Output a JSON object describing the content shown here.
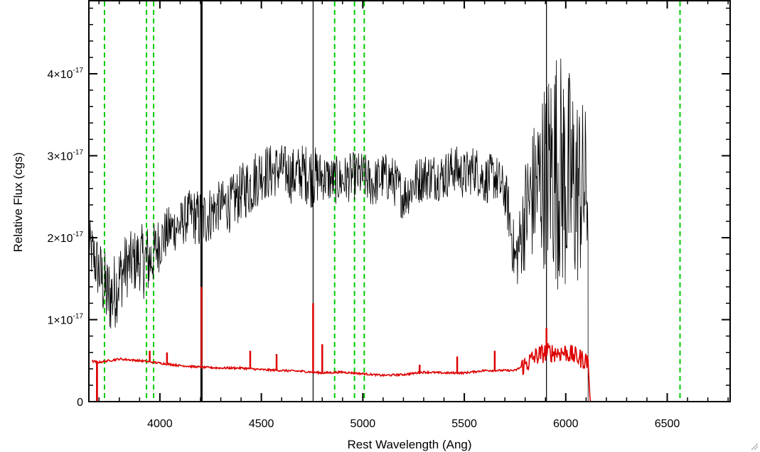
{
  "chart_data": {
    "type": "line",
    "xlabel": "Rest Wavelength (Ang)",
    "ylabel": "Relative Flux (cgs)",
    "xlim": [
      3650,
      6810
    ],
    "ylim": [
      0,
      4.9e-17
    ],
    "x_ticks": [
      {
        "value": 4000,
        "label": "4000"
      },
      {
        "value": 4500,
        "label": "4500"
      },
      {
        "value": 5000,
        "label": "5000"
      },
      {
        "value": 5500,
        "label": "5500"
      },
      {
        "value": 6000,
        "label": "6000"
      },
      {
        "value": 6500,
        "label": "6500"
      }
    ],
    "y_ticks": [
      {
        "value": 0,
        "mantissa": "0",
        "exponent": ""
      },
      {
        "value": 1e-17,
        "mantissa": "1×10",
        "exponent": "-17"
      },
      {
        "value": 2e-17,
        "mantissa": "2×10",
        "exponent": "-17"
      },
      {
        "value": 3e-17,
        "mantissa": "3×10",
        "exponent": "-17"
      },
      {
        "value": 4e-17,
        "mantissa": "4×10",
        "exponent": "-17"
      }
    ],
    "reference_lines": {
      "color": "#00cc00",
      "style": "dashed",
      "x": [
        3727,
        3934,
        3969,
        4861,
        4959,
        5007,
        6563
      ]
    },
    "series": [
      {
        "role": "flux",
        "color": "#000000",
        "x": [
          3650,
          3700,
          3740,
          3770,
          3800,
          3830,
          3870,
          3900,
          3930,
          3960,
          4000,
          4050,
          4100,
          4150,
          4200,
          4250,
          4300,
          4350,
          4400,
          4450,
          4500,
          4550,
          4600,
          4650,
          4700,
          4750,
          4800,
          4850,
          4900,
          4950,
          5000,
          5050,
          5100,
          5150,
          5200,
          5250,
          5300,
          5350,
          5400,
          5450,
          5500,
          5550,
          5600,
          5650,
          5700,
          5720,
          5750,
          5780,
          5800,
          5850,
          5900,
          5950,
          6000,
          6050,
          6100,
          6110
        ],
        "y": [
          1.9e-17,
          1.6e-17,
          1.3e-17,
          1.3e-17,
          1.5e-17,
          1.65e-17,
          1.7e-17,
          1.75e-17,
          1.7e-17,
          1.75e-17,
          1.95e-17,
          2.1e-17,
          2.15e-17,
          2.3e-17,
          2.2e-17,
          2.3e-17,
          2.4e-17,
          2.4e-17,
          2.55e-17,
          2.65e-17,
          2.8e-17,
          2.8e-17,
          2.85e-17,
          2.75e-17,
          2.8e-17,
          2.75e-17,
          2.75e-17,
          2.7e-17,
          2.7e-17,
          2.75e-17,
          2.75e-17,
          2.65e-17,
          2.75e-17,
          2.7e-17,
          2.5e-17,
          2.65e-17,
          2.75e-17,
          2.75e-17,
          2.75e-17,
          2.85e-17,
          2.75e-17,
          2.85e-17,
          2.7e-17,
          2.75e-17,
          2.55e-17,
          2.3e-17,
          1.7e-17,
          2e-17,
          2.3e-17,
          2.6e-17,
          2.8e-17,
          2.9e-17,
          2.7e-17,
          2.6e-17,
          2.6e-17,
          2.5e-17
        ],
        "noise": [
          3.5e-18,
          4e-18,
          5e-18,
          5e-18,
          4.5e-18,
          4e-18,
          4e-18,
          4e-18,
          5e-18,
          4e-18,
          3.5e-18,
          3e-18,
          3e-18,
          3e-18,
          4e-18,
          3.5e-18,
          3e-18,
          3.5e-18,
          3.5e-18,
          4e-18,
          3.5e-18,
          3.5e-18,
          3e-18,
          3.5e-18,
          3.5e-18,
          4e-18,
          3e-18,
          3e-18,
          3e-18,
          3e-18,
          3e-18,
          3e-18,
          3e-18,
          3e-18,
          3e-18,
          3e-18,
          3e-18,
          3e-18,
          3e-18,
          3e-18,
          3e-18,
          3e-18,
          3e-18,
          3e-18,
          3e-18,
          3.5e-18,
          4e-18,
          5e-18,
          7e-18,
          9e-18,
          1.2e-17,
          1.5e-17,
          1.5e-17,
          1.3e-17,
          1e-17,
          8e-18
        ],
        "x_end": 6110,
        "spikes": [
          {
            "x": 4205,
            "y_top": 4.9e-17,
            "y_bottom": 0
          },
          {
            "x": 4755,
            "y_top": 4.9e-17,
            "y_bottom": 0
          },
          {
            "x": 5905,
            "y_top": 4.9e-17,
            "y_bottom": 0
          }
        ]
      },
      {
        "role": "error",
        "color": "#dd0000",
        "x": [
          3650,
          3700,
          3800,
          3900,
          4000,
          4100,
          4200,
          4300,
          4400,
          4500,
          4600,
          4700,
          4800,
          4900,
          5000,
          5100,
          5200,
          5300,
          5400,
          5500,
          5600,
          5700,
          5750,
          5800,
          5850,
          5900,
          5950,
          6000,
          6050,
          6100,
          6110,
          6120,
          6810
        ],
        "y": [
          5e-18,
          4.8e-18,
          5.2e-18,
          5e-18,
          4.7e-18,
          4.4e-18,
          4.2e-18,
          4.1e-18,
          4.1e-18,
          3.9e-18,
          3.8e-18,
          3.7e-18,
          3.5e-18,
          3.6e-18,
          3.4e-18,
          3.2e-18,
          3.3e-18,
          3.6e-18,
          3.5e-18,
          3.5e-18,
          3.8e-18,
          3.8e-18,
          3.8e-18,
          4.5e-18,
          5.5e-18,
          6e-18,
          6e-18,
          6e-18,
          5.5e-18,
          5e-18,
          5e-18,
          0,
          0
        ],
        "spikes": [
          {
            "x": 3690,
            "y": 0.0
          },
          {
            "x": 3950,
            "y": 6.2e-18
          },
          {
            "x": 4035,
            "y": 6e-18
          },
          {
            "x": 4205,
            "y": 1.4e-17
          },
          {
            "x": 4445,
            "y": 6.2e-18
          },
          {
            "x": 4575,
            "y": 5.8e-18
          },
          {
            "x": 4755,
            "y": 1.2e-17
          },
          {
            "x": 4800,
            "y": 7e-18
          },
          {
            "x": 5280,
            "y": 4.5e-18
          },
          {
            "x": 5465,
            "y": 5.5e-18
          },
          {
            "x": 5650,
            "y": 6.2e-18
          },
          {
            "x": 5905,
            "y": 9e-18
          }
        ]
      }
    ]
  }
}
